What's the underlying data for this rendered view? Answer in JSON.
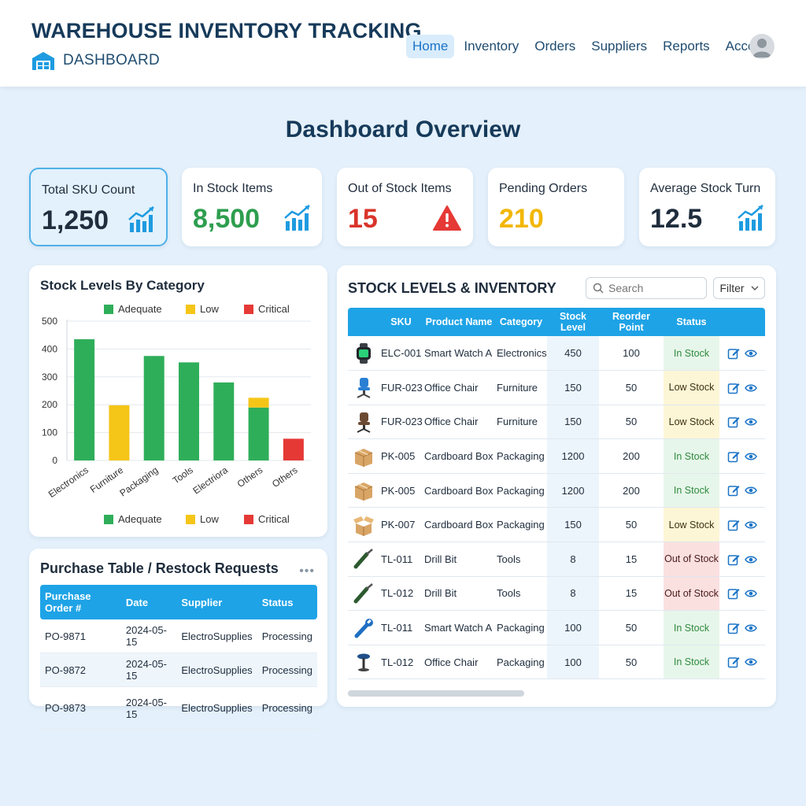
{
  "header": {
    "title": "WAREHOUSE INVENTORY TRACKING",
    "subtitle": "DASHBOARD",
    "nav": [
      "Home",
      "Inventory",
      "Orders",
      "Suppliers",
      "Reports",
      "Account"
    ],
    "active_nav": "Home"
  },
  "overview_title": "Dashboard Overview",
  "kpis": [
    {
      "label": "Total SKU Count",
      "value": "1,250",
      "icon": "trend-up-chart-icon",
      "color": "#1f2d3d"
    },
    {
      "label": "In Stock Items",
      "value": "8,500",
      "icon": "trend-up-chart-icon",
      "color": "#2e9e4f"
    },
    {
      "label": "Out of Stock Items",
      "value": "15",
      "icon": "warning-triangle-icon",
      "color": "#d9342b"
    },
    {
      "label": "Pending Orders",
      "value": "210",
      "icon": "none",
      "color": "#f2b705"
    },
    {
      "label": "Average Stock Turn",
      "value": "12.5",
      "icon": "trend-up-chart-icon",
      "color": "#1f2d3d"
    }
  ],
  "stock_chart": {
    "title": "Stock Levels By Category",
    "legend": [
      "Adequate",
      "Low",
      "Critical"
    ]
  },
  "chart_data": {
    "type": "bar",
    "title": "Stock Levels By Category",
    "categories": [
      "Electronics",
      "Furniture",
      "Packaging",
      "Tools",
      "Electriora",
      "Others",
      "Others"
    ],
    "series": [
      {
        "name": "Adequate",
        "color": "#2fae5a",
        "values": [
          435,
          0,
          375,
          352,
          280,
          190,
          0
        ]
      },
      {
        "name": "Low",
        "color": "#f5c518",
        "values": [
          0,
          198,
          0,
          0,
          0,
          35,
          0
        ]
      },
      {
        "name": "Critical",
        "color": "#e53935",
        "values": [
          0,
          0,
          0,
          0,
          0,
          0,
          78
        ]
      }
    ],
    "stacked": true,
    "yticks": [
      "0",
      "100",
      "200",
      "300",
      "400",
      "500"
    ],
    "ylim": [
      0,
      500
    ],
    "grid": true,
    "legend_placement": "top and bottom"
  },
  "purchase": {
    "title": "Purchase Table / Restock Requests",
    "columns": [
      "Purchase Order #",
      "Date",
      "Supplier",
      "Status"
    ],
    "rows": [
      [
        "PO-9871",
        "2024-05-15",
        "ElectroSupplies",
        "Processing"
      ],
      [
        "PO-9872",
        "2024-05-15",
        "ElectroSupplies",
        "Processing"
      ],
      [
        "PO-9873",
        "2024-05-15",
        "ElectroSupplies",
        "Processing"
      ]
    ]
  },
  "inventory": {
    "title": "STOCK LEVELS & INVENTORY",
    "search_placeholder": "Search",
    "filter_label": "Filter",
    "columns": [
      "SKU",
      "Product Name",
      "Category",
      "Stock Level",
      "Reorder Point",
      "Status"
    ],
    "rows": [
      {
        "thumb": "smartwatch-icon",
        "sku": "ELC-001",
        "name": "Smart Watch A",
        "category": "Electronics",
        "stock": "450",
        "reorder": "100",
        "status": "In Stock",
        "tone": "in"
      },
      {
        "thumb": "office-chair-blue-icon",
        "sku": "FUR-023",
        "name": "Office Chair",
        "category": "Furniture",
        "stock": "150",
        "reorder": "50",
        "status": "Low Stock",
        "tone": "low"
      },
      {
        "thumb": "office-chair-brown-icon",
        "sku": "FUR-023",
        "name": "Office Chair",
        "category": "Furniture",
        "stock": "150",
        "reorder": "50",
        "status": "Low Stock",
        "tone": "low"
      },
      {
        "thumb": "cardboard-box-icon",
        "sku": "PK-005",
        "name": "Cardboard Box",
        "category": "Packaging",
        "stock": "1200",
        "reorder": "200",
        "status": "In Stock",
        "tone": "in"
      },
      {
        "thumb": "cardboard-box-icon",
        "sku": "PK-005",
        "name": "Cardboard Box",
        "category": "Packaging",
        "stock": "1200",
        "reorder": "200",
        "status": "In Stock",
        "tone": "in"
      },
      {
        "thumb": "open-box-icon",
        "sku": "PK-007",
        "name": "Cardboard Box",
        "category": "Packaging",
        "stock": "150",
        "reorder": "50",
        "status": "Low Stock",
        "tone": "low"
      },
      {
        "thumb": "drill-bit-icon",
        "sku": "TL-011",
        "name": "Drill Bit",
        "category": "Tools",
        "stock": "8",
        "reorder": "15",
        "status": "Out of Stock",
        "tone": "out"
      },
      {
        "thumb": "drill-bit-icon",
        "sku": "TL-012",
        "name": "Drill Bit",
        "category": "Tools",
        "stock": "8",
        "reorder": "15",
        "status": "Out of Stock",
        "tone": "out"
      },
      {
        "thumb": "wrench-icon",
        "sku": "TL-011",
        "name": "Smart Watch A",
        "category": "Packaging",
        "stock": "100",
        "reorder": "50",
        "status": "In Stock",
        "tone": "in"
      },
      {
        "thumb": "stool-icon",
        "sku": "TL-012",
        "name": "Office Chair",
        "category": "Packaging",
        "stock": "100",
        "reorder": "50",
        "status": "In Stock",
        "tone": "in"
      }
    ]
  }
}
